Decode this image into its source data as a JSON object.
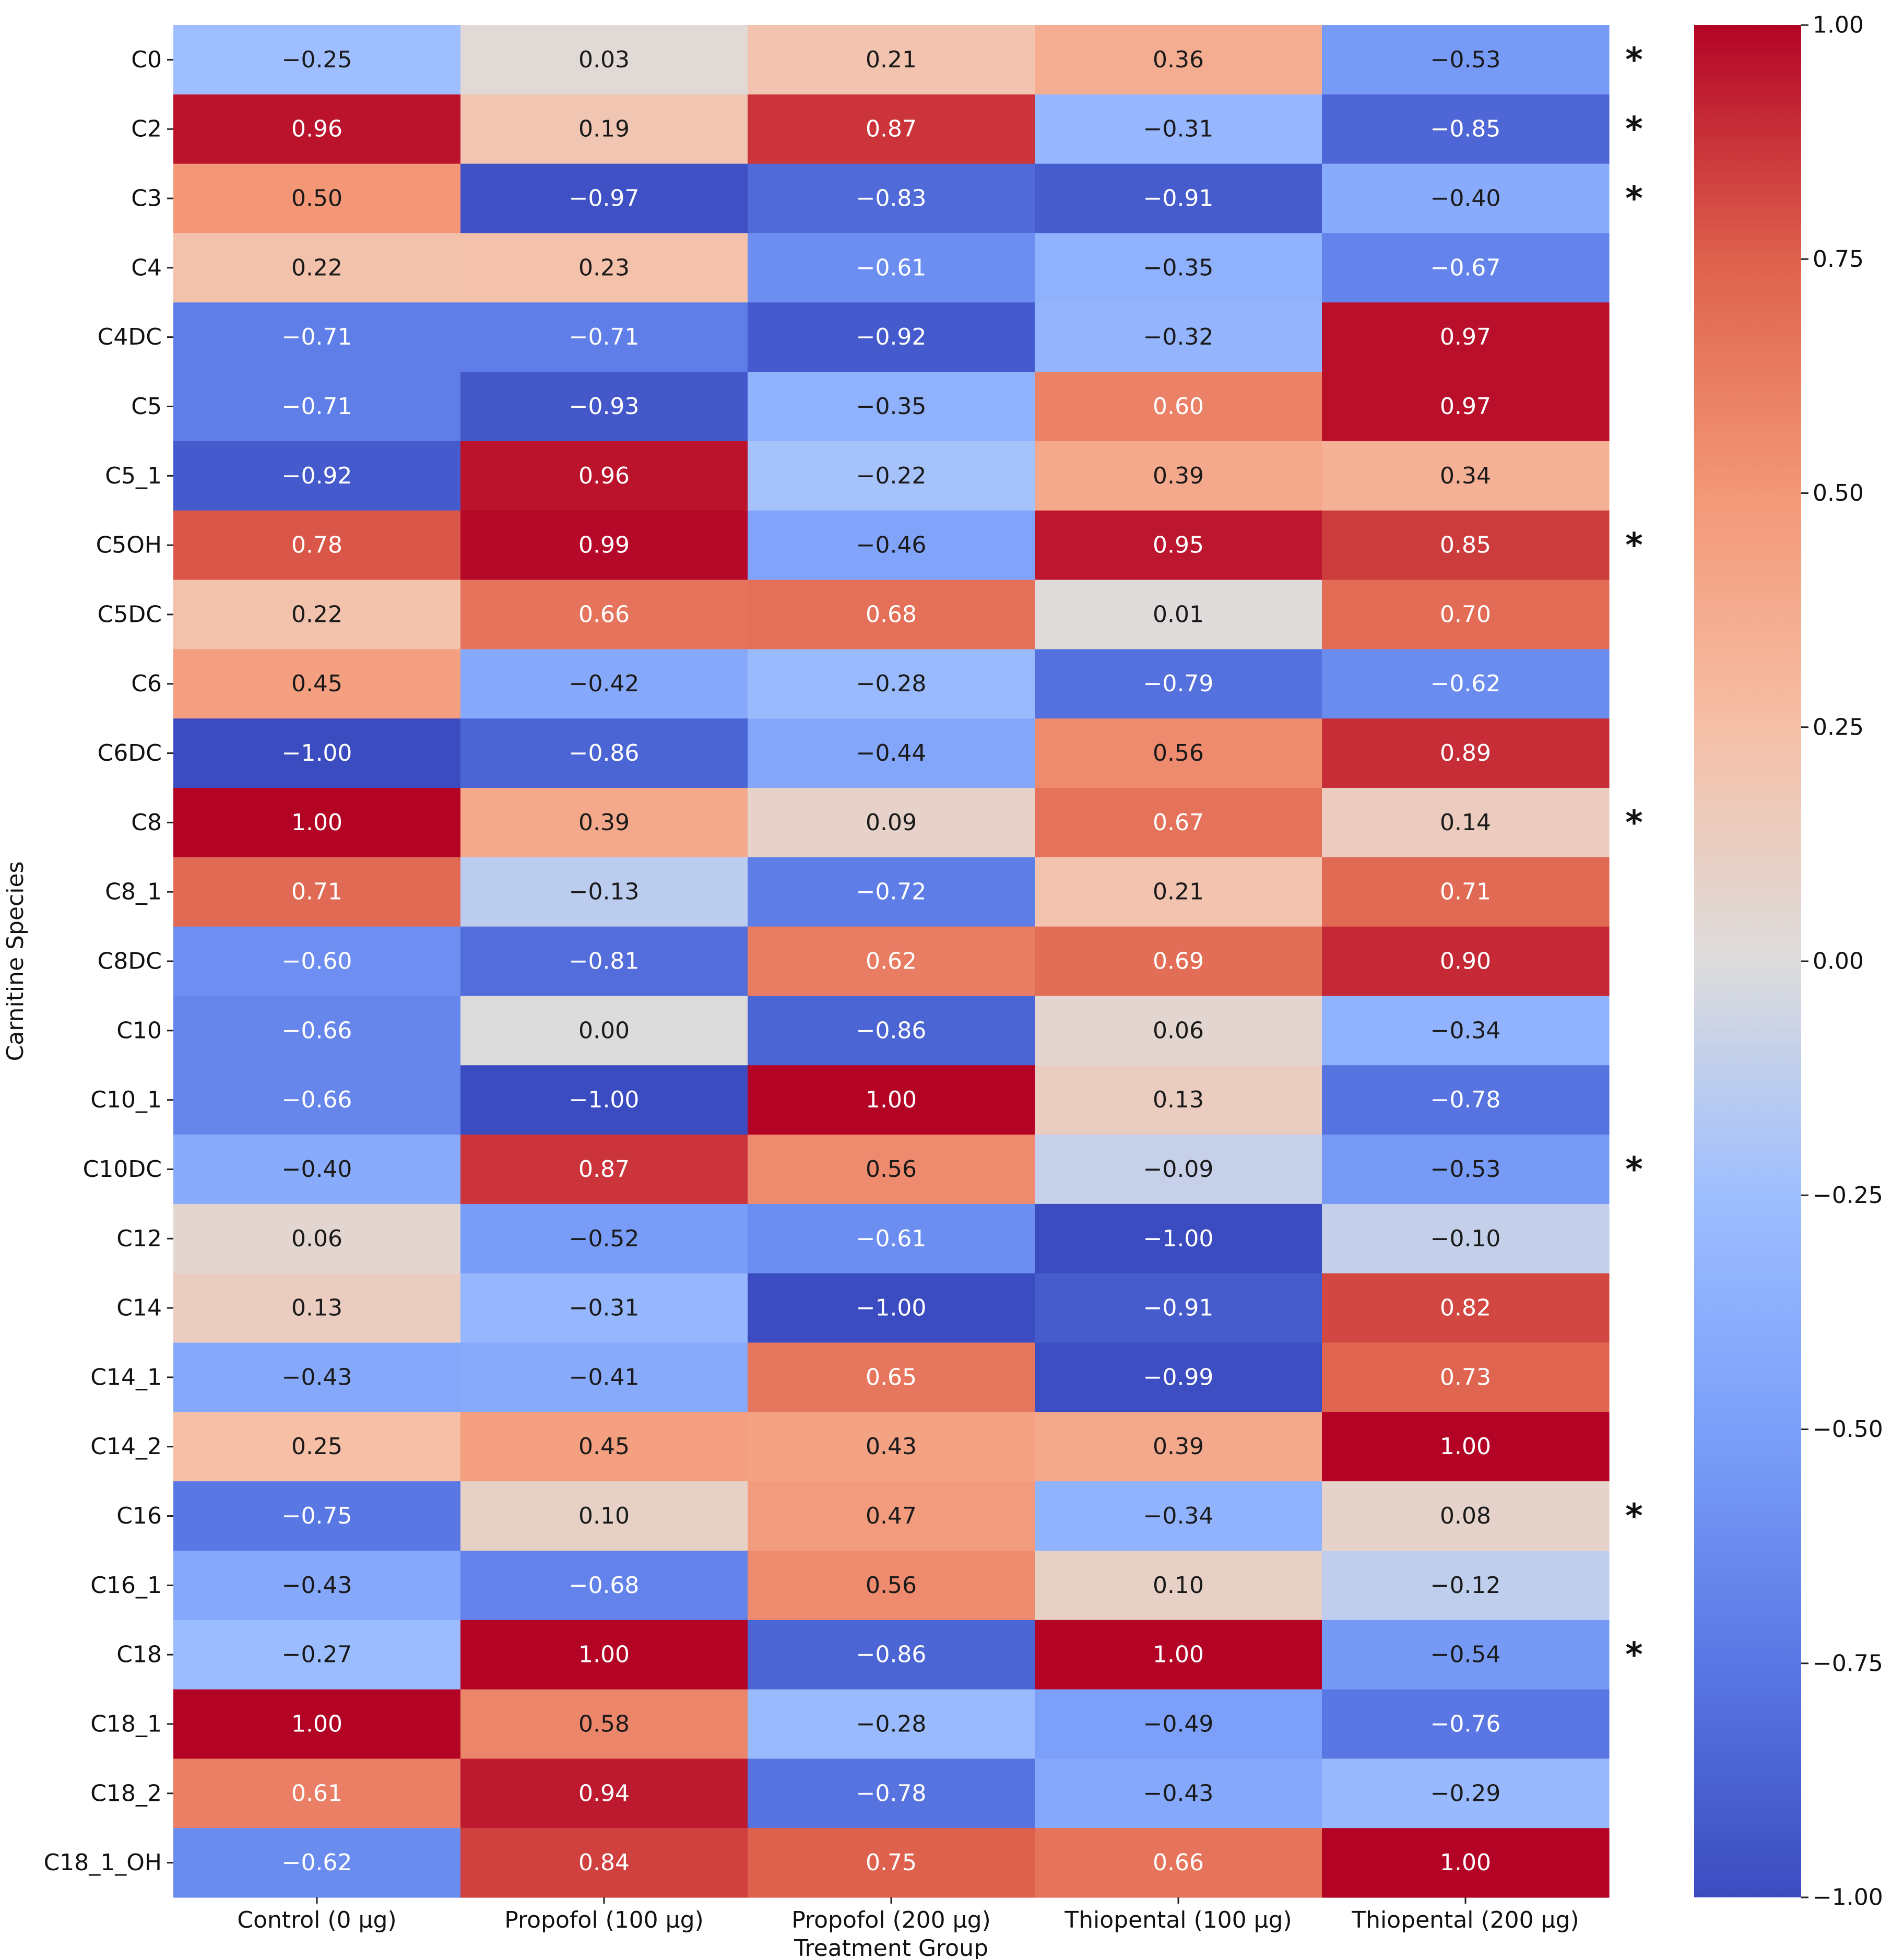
{
  "chart_data": {
    "type": "heatmap",
    "title": "",
    "xlabel": "Treatment Group",
    "ylabel": "Carnitine Species",
    "columns": [
      "Control (0 µg)",
      "Propofol (100 µg)",
      "Propofol (200 µg)",
      "Thiopental (100 µg)",
      "Thiopental (200 µg)"
    ],
    "rows": [
      "C0",
      "C2",
      "C3",
      "C4",
      "C4DC",
      "C5",
      "C5_1",
      "C5OH",
      "C5DC",
      "C6",
      "C6DC",
      "C8",
      "C8_1",
      "C8DC",
      "C10",
      "C10_1",
      "C10DC",
      "C12",
      "C14",
      "C14_1",
      "C14_2",
      "C16",
      "C16_1",
      "C18",
      "C18_1",
      "C18_2",
      "C18_1_OH"
    ],
    "values": [
      [
        -0.25,
        0.03,
        0.21,
        0.36,
        -0.53
      ],
      [
        0.96,
        0.19,
        0.87,
        -0.31,
        -0.85
      ],
      [
        0.5,
        -0.97,
        -0.83,
        -0.91,
        -0.4
      ],
      [
        0.22,
        0.23,
        -0.61,
        -0.35,
        -0.67
      ],
      [
        -0.71,
        -0.71,
        -0.92,
        -0.32,
        0.97
      ],
      [
        -0.71,
        -0.93,
        -0.35,
        0.6,
        0.97
      ],
      [
        -0.92,
        0.96,
        -0.22,
        0.39,
        0.34
      ],
      [
        0.78,
        0.99,
        -0.46,
        0.95,
        0.85
      ],
      [
        0.22,
        0.66,
        0.68,
        0.01,
        0.7
      ],
      [
        0.45,
        -0.42,
        -0.28,
        -0.79,
        -0.62
      ],
      [
        -1.0,
        -0.86,
        -0.44,
        0.56,
        0.89
      ],
      [
        1.0,
        0.39,
        0.09,
        0.67,
        0.14
      ],
      [
        0.71,
        -0.13,
        -0.72,
        0.21,
        0.71
      ],
      [
        -0.6,
        -0.81,
        0.62,
        0.69,
        0.9
      ],
      [
        -0.66,
        0.0,
        -0.86,
        0.06,
        -0.34
      ],
      [
        -0.66,
        -1.0,
        1.0,
        0.13,
        -0.78
      ],
      [
        -0.4,
        0.87,
        0.56,
        -0.09,
        -0.53
      ],
      [
        0.06,
        -0.52,
        -0.61,
        -1.0,
        -0.1
      ],
      [
        0.13,
        -0.31,
        -1.0,
        -0.91,
        0.82
      ],
      [
        -0.43,
        -0.41,
        0.65,
        -0.99,
        0.73
      ],
      [
        0.25,
        0.45,
        0.43,
        0.39,
        1.0
      ],
      [
        -0.75,
        0.1,
        0.47,
        -0.34,
        0.08
      ],
      [
        -0.43,
        -0.68,
        0.56,
        0.1,
        -0.12
      ],
      [
        -0.27,
        1.0,
        -0.86,
        1.0,
        -0.54
      ],
      [
        1.0,
        0.58,
        -0.28,
        -0.49,
        -0.76
      ],
      [
        0.61,
        0.94,
        -0.78,
        -0.43,
        -0.29
      ],
      [
        -0.62,
        0.84,
        0.75,
        0.66,
        1.0
      ]
    ],
    "significant_rows": [
      "C0",
      "C2",
      "C3",
      "C5OH",
      "C8",
      "C10DC",
      "C16",
      "C18"
    ],
    "significance_marker": "*",
    "colormap": "coolwarm",
    "vmin": -1.0,
    "vmax": 1.0,
    "colorbar_ticks": [
      "1.00",
      "0.75",
      "0.50",
      "0.25",
      "0.00",
      "−0.25",
      "−0.50",
      "−0.75",
      "−1.00"
    ],
    "colorbar_tick_values": [
      1.0,
      0.75,
      0.5,
      0.25,
      0.0,
      -0.25,
      -0.5,
      -0.75,
      -1.0
    ],
    "legend_position": "right"
  }
}
